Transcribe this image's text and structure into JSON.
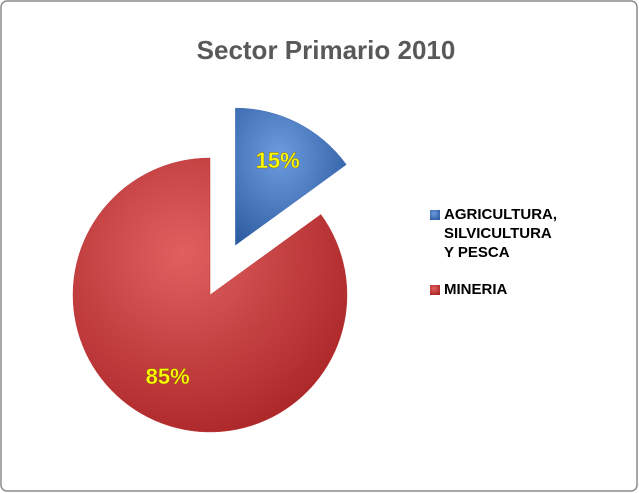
{
  "chart_data": {
    "type": "pie",
    "title": "Sector Primario 2010",
    "categories": [
      "AGRICULTURA, SILVICULTURA Y PESCA",
      "MINERIA"
    ],
    "values": [
      15,
      85
    ],
    "value_labels": [
      "15%",
      "85%"
    ],
    "colors": [
      "#3f6fb5",
      "#c0393a"
    ],
    "exploded": [
      true,
      false
    ],
    "legend": "right"
  }
}
